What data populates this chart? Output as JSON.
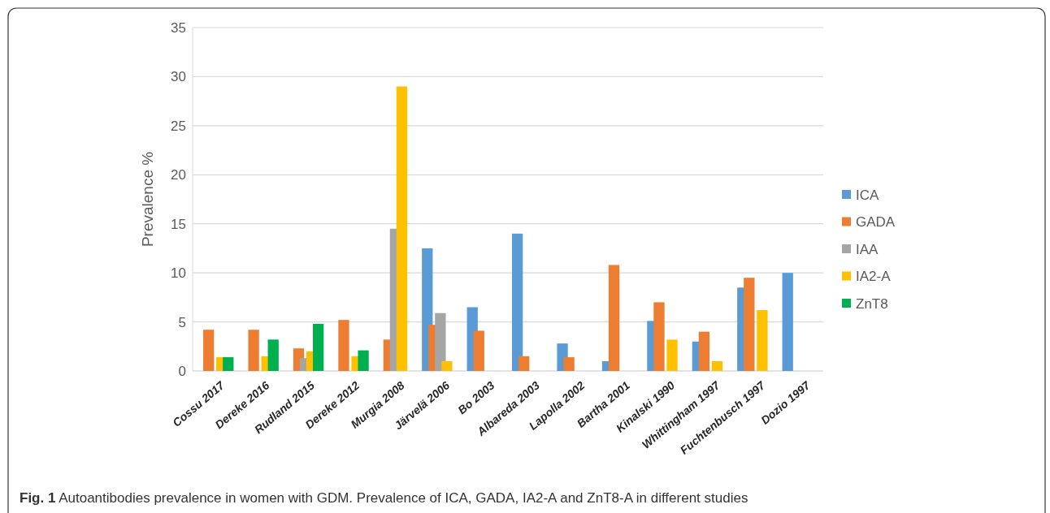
{
  "chart_data": {
    "type": "bar",
    "ylabel": "Prevalence %",
    "categories": [
      "Cossu 2017",
      "Dereke 2016",
      "Rudland 2015",
      "Dereke 2012",
      "Murgia 2008",
      "Järvelä 2006",
      "Bo 2003",
      "Albareda 2003",
      "Lapolla 2002",
      "Bartha 2001",
      "Kinalski 1990",
      "Whittingham 1997",
      "Fuchtenbusch 1997",
      "Dozio 1997"
    ],
    "series": [
      {
        "name": "ICA",
        "color": "#5b9bd5",
        "values": [
          null,
          null,
          null,
          null,
          null,
          12.5,
          6.5,
          14,
          2.8,
          1.0,
          5.1,
          3.0,
          8.5,
          10
        ]
      },
      {
        "name": "GADA",
        "color": "#ed7d31",
        "values": [
          4.2,
          4.2,
          2.3,
          5.2,
          3.2,
          4.7,
          4.1,
          1.5,
          1.4,
          10.8,
          7.0,
          4.0,
          9.5,
          null
        ]
      },
      {
        "name": "IAA",
        "color": "#a5a5a5",
        "values": [
          null,
          null,
          1.3,
          null,
          14.5,
          5.9,
          null,
          null,
          null,
          null,
          null,
          null,
          null,
          null
        ]
      },
      {
        "name": "IA2-A",
        "color": "#ffc000",
        "values": [
          1.4,
          1.5,
          2.0,
          1.5,
          29,
          1.0,
          null,
          null,
          null,
          null,
          3.2,
          1.0,
          6.2,
          null
        ]
      },
      {
        "name": "ZnT8",
        "color": "#00b050",
        "values": [
          1.4,
          3.2,
          4.8,
          2.1,
          null,
          null,
          null,
          null,
          null,
          null,
          null,
          null,
          null,
          null
        ]
      }
    ],
    "ylim": [
      0,
      35
    ],
    "yticks": [
      0,
      5,
      10,
      15,
      20,
      25,
      30,
      35
    ],
    "grid": "y",
    "legend": "right",
    "annotations": [
      "Fig. 1 Autoantibodies prevalence in women with GDM. Prevalence of ICA, GADA, IA2-A and ZnT8-A in different studies"
    ]
  }
}
